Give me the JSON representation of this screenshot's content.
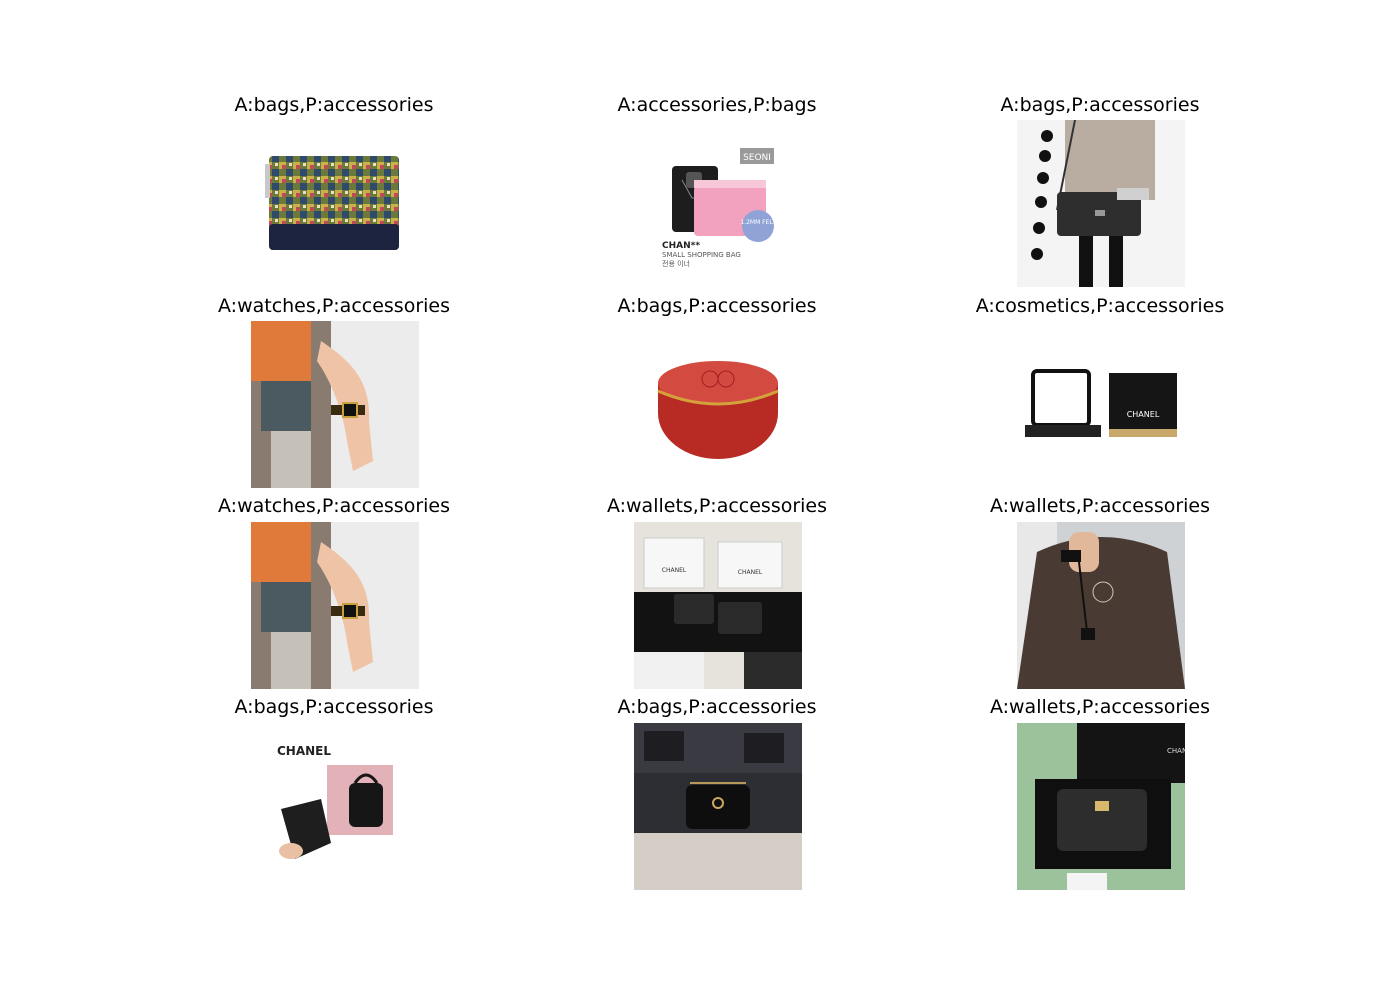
{
  "panels": [
    {
      "title": "A:bags,P:accessories",
      "thumbnail": "tweed-pouch-thumbnail"
    },
    {
      "title": "A:accessories,P:bags",
      "thumbnail": "bag-organizer-insert-thumbnail",
      "texts": {
        "badge": "SEONI",
        "felt": "1.2MM FELT",
        "brand": "CHAN**",
        "caption": "SMALL SHOPPING BAG",
        "sub": "전용 이너"
      }
    },
    {
      "title": "A:bags,P:accessories",
      "thumbnail": "worn-flap-bag-thumbnail"
    },
    {
      "title": "A:watches,P:accessories",
      "thumbnail": "wrist-watch-thumbnail"
    },
    {
      "title": "A:bags,P:accessories",
      "thumbnail": "red-round-case-thumbnail"
    },
    {
      "title": "A:cosmetics,P:accessories",
      "thumbnail": "compact-cosmetic-thumbnail",
      "texts": {
        "brand": "CHANEL"
      }
    },
    {
      "title": "A:watches,P:accessories",
      "thumbnail": "wrist-watch-thumbnail"
    },
    {
      "title": "A:wallets,P:accessories",
      "thumbnail": "wallets-with-boxes-thumbnail",
      "texts": {
        "box1": "CHANEL",
        "box2": "CHANEL"
      }
    },
    {
      "title": "A:wallets,P:accessories",
      "thumbnail": "lanyard-card-holder-thumbnail"
    },
    {
      "title": "A:bags,P:accessories",
      "thumbnail": "backpack-with-dustbag-thumbnail",
      "texts": {
        "brand": "CHANEL"
      }
    },
    {
      "title": "A:bags,P:accessories",
      "thumbnail": "mini-black-bag-thumbnail"
    },
    {
      "title": "A:wallets,P:accessories",
      "thumbnail": "boxed-wallet-thumbnail",
      "texts": {
        "box": "CHANEL"
      }
    }
  ]
}
